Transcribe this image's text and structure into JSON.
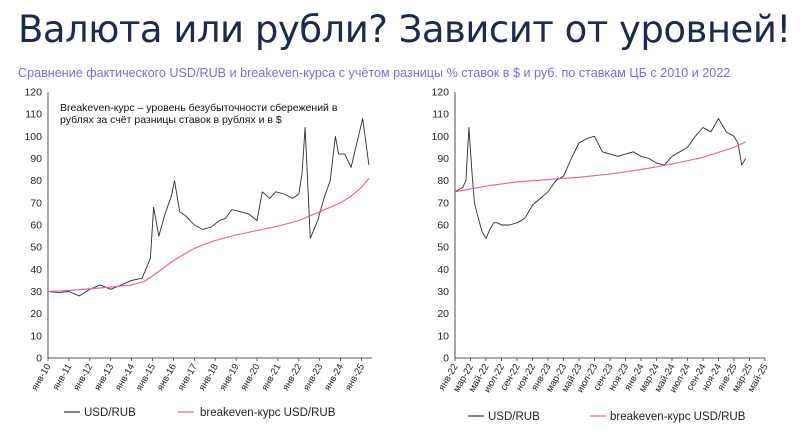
{
  "header": {
    "title": "Валюта или рубли? Зависит от уровней!",
    "subtitle": "Сравнение фактического USD/RUB и breakeven-курса с учётом разницы % ставок в $ и руб. по ставкам ЦБ с 2010 и 2022"
  },
  "colors": {
    "usd": "#2b2b3a",
    "breakeven": "#e8609a",
    "title": "#1e2a4a",
    "subtitle": "#7b6be0"
  },
  "chart_data": [
    {
      "type": "line",
      "annotation": [
        "Breakeven-курс – уровень безубыточности сбережений в",
        "рублях за счёт разницы ставок в рублях и в $"
      ],
      "ylim": [
        0,
        120
      ],
      "yticks": [
        0,
        10,
        20,
        30,
        40,
        50,
        60,
        70,
        80,
        90,
        100,
        110,
        120
      ],
      "xlim": [
        2010,
        2025.5
      ],
      "x_tick_labels": [
        "янв-10",
        "янв-11",
        "янв-12",
        "янв-13",
        "янв-14",
        "янв-15",
        "янв-16",
        "янв-17",
        "янв-18",
        "янв-19",
        "янв-20",
        "янв-21",
        "янв-22",
        "янв-23",
        "янв-24",
        "янв-25"
      ],
      "series": [
        {
          "name": "USD/RUB",
          "x": [
            2010.0,
            2010.5,
            2011.0,
            2011.5,
            2012.0,
            2012.5,
            2013.0,
            2013.5,
            2014.0,
            2014.5,
            2014.9,
            2015.05,
            2015.3,
            2015.6,
            2015.9,
            2016.05,
            2016.3,
            2016.6,
            2017.0,
            2017.4,
            2017.8,
            2018.2,
            2018.5,
            2018.8,
            2019.2,
            2019.6,
            2020.0,
            2020.25,
            2020.6,
            2020.9,
            2021.3,
            2021.7,
            2022.0,
            2022.15,
            2022.3,
            2022.55,
            2022.9,
            2023.2,
            2023.5,
            2023.75,
            2023.9,
            2024.2,
            2024.5,
            2024.75,
            2024.9,
            2025.05,
            2025.2,
            2025.35
          ],
          "values": [
            30,
            29.5,
            30,
            28,
            31,
            33,
            31,
            33,
            35,
            36,
            45,
            68,
            55,
            65,
            73,
            80,
            66,
            64,
            60,
            58,
            59,
            62,
            63,
            67,
            66,
            65,
            62,
            75,
            72,
            75,
            74,
            72,
            74,
            83,
            104,
            54,
            62,
            72,
            80,
            100,
            92,
            92,
            86,
            96,
            102,
            108,
            98,
            87
          ]
        },
        {
          "name": "breakeven-курс USD/RUB",
          "x": [
            2010.0,
            2011.0,
            2012.0,
            2013.0,
            2014.0,
            2014.6,
            2015.0,
            2016.0,
            2017.0,
            2018.0,
            2019.0,
            2020.0,
            2021.0,
            2022.0,
            2022.5,
            2023.0,
            2023.5,
            2024.0,
            2024.5,
            2025.0,
            2025.35
          ],
          "values": [
            30,
            30.5,
            31.2,
            32,
            33,
            34.5,
            37,
            44,
            49.5,
            53,
            55.5,
            57.5,
            59.5,
            62,
            64,
            66,
            68,
            70,
            73,
            77,
            81
          ]
        }
      ]
    },
    {
      "type": "line",
      "ylim": [
        0,
        120
      ],
      "yticks": [
        0,
        10,
        20,
        30,
        40,
        50,
        60,
        70,
        80,
        90,
        100,
        110,
        120
      ],
      "xlim": [
        0,
        40
      ],
      "x_tick_labels": [
        "янв-22",
        "мар-22",
        "май-22",
        "июл-22",
        "сен-22",
        "ноя-22",
        "янв-23",
        "мар-23",
        "май-23",
        "июл-23",
        "сен-23",
        "ноя-23",
        "янв-24",
        "мар-24",
        "май-24",
        "июл-24",
        "сен-24",
        "ноя-24",
        "янв-25",
        "мар-25",
        "май-25"
      ],
      "series": [
        {
          "name": "USD/RUB",
          "x": [
            0,
            0.5,
            1,
            1.4,
            1.8,
            2.2,
            2.5,
            3,
            3.5,
            4,
            4.5,
            5,
            5.5,
            6,
            7,
            8,
            9,
            10,
            11,
            12,
            13,
            14,
            15,
            16,
            17,
            18,
            19,
            20,
            21,
            22,
            23,
            24,
            25,
            26,
            27,
            28,
            29,
            30,
            31,
            32,
            33,
            34,
            35,
            36,
            36.5,
            37,
            37.5
          ],
          "values": [
            75,
            76,
            77,
            80,
            104,
            83,
            70,
            63,
            57,
            54,
            58,
            61,
            61,
            60,
            60,
            61,
            63,
            69,
            72,
            75,
            80,
            82,
            90,
            97,
            99,
            100,
            93,
            92,
            91,
            92,
            93,
            91,
            90,
            88,
            87,
            91,
            93,
            95,
            100,
            104,
            102,
            108,
            102,
            100,
            97,
            87,
            90
          ]
        },
        {
          "name": "breakeven-курс USD/RUB",
          "x": [
            0,
            4,
            8,
            12,
            16,
            20,
            24,
            28,
            32,
            36,
            37.5
          ],
          "values": [
            75,
            77.5,
            79.5,
            80.5,
            81.5,
            83,
            85,
            87.5,
            90.5,
            95,
            97.5
          ]
        }
      ]
    }
  ],
  "legend": {
    "usd_label": "USD/RUB",
    "breakeven_label": "breakeven-курс USD/RUB"
  }
}
